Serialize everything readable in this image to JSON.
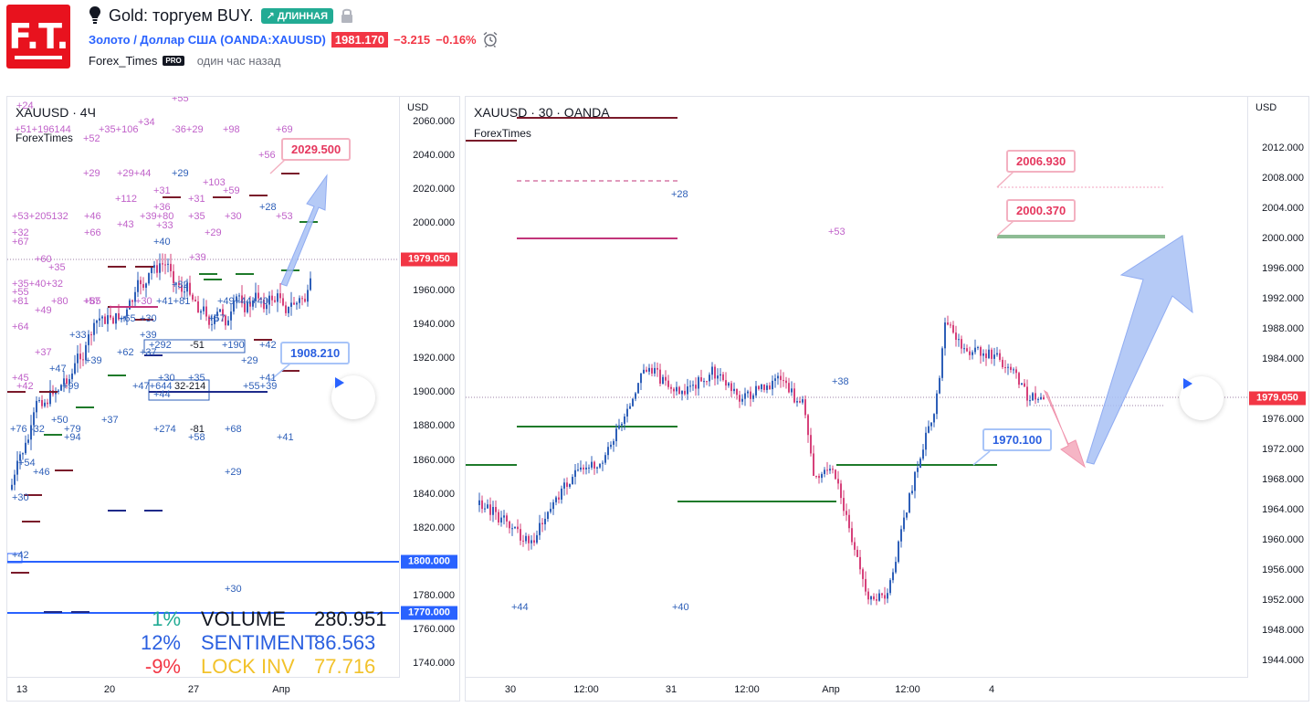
{
  "header": {
    "logo_text": "F.T.",
    "title": "Gold: торгуем BUY.",
    "direction_badge": "ДЛИННАЯ",
    "symbol_name": "Золото / Доллар США",
    "symbol_exchange": "(OANDA:XAUUSD)",
    "price": "1981.170",
    "change": "−3.215",
    "change_pct": "−0.16%",
    "author": "Forex_Times",
    "pro_badge": "PRO",
    "time_ago": "один час назад",
    "colors": {
      "logo": "#e8121e",
      "badge": "#22ab94",
      "negative": "#f23645",
      "link": "#2962ff"
    }
  },
  "left_chart": {
    "title": "XAUUSD · 4Ч",
    "subtitle": "ForexTimes",
    "axis_unit": "USD",
    "y_ticks": [
      "2060.000",
      "2040.000",
      "2020.000",
      "2000.000",
      "1960.000",
      "1940.000",
      "1920.000",
      "1900.000",
      "1880.000",
      "1860.000",
      "1840.000",
      "1820.000",
      "1780.000",
      "1760.000",
      "1740.000"
    ],
    "price_badges": [
      {
        "label": "1979.050",
        "color": "#f23645"
      },
      {
        "label": "1800.000",
        "color": "#2962ff"
      },
      {
        "label": "1770.000",
        "color": "#2962ff"
      }
    ],
    "x_ticks": [
      "13",
      "20",
      "27",
      "Апр"
    ],
    "callouts": {
      "target": "2029.500",
      "support": "1908.210"
    },
    "stats": [
      {
        "pct": "1%",
        "name": "VOLUME",
        "value": "280.951",
        "color": "#22ab94",
        "name_color": "#131722"
      },
      {
        "pct": "12%",
        "name": "SENTIMENT",
        "value": "86.563",
        "color": "#2a5fe0",
        "name_color": "#2a5fe0"
      },
      {
        "pct": "-9%",
        "name": "LOCK INV",
        "value": "77.716",
        "color": "#f23645",
        "name_color": "#f2c22b"
      }
    ],
    "annotations": [
      "+24",
      "+55",
      "+51+196144",
      "+35+106",
      "+34",
      "+52",
      "-36+29",
      "+98",
      "+69",
      "+56",
      "+29",
      "+29+44",
      "+29",
      "+103",
      "+31",
      "+59",
      "+112",
      "+31",
      "+53+205132",
      "+46",
      "+43",
      "+39+80",
      "+36",
      "+33",
      "+35",
      "+30",
      "+28",
      "+53",
      "+66",
      "+29",
      "+32",
      "+67",
      "+40",
      "+39",
      "+60",
      "+35",
      "+81",
      "+35+40+32",
      "+55",
      "+57",
      "+80",
      "+85",
      "+30",
      "+41+81",
      "+32",
      "+49+44+40",
      "+49",
      "+65",
      "+30",
      "+57",
      "+64",
      "+33",
      "+39",
      "+39",
      "+62",
      "+292",
      "-51",
      "+190",
      "+42",
      "+37",
      "+37",
      "+47",
      "+99",
      "+29",
      "+30",
      "+35",
      "+45",
      "+42",
      "+47+644",
      "32-214",
      "+44",
      "+41",
      "+55+39",
      "+50",
      "+37",
      "+76",
      "-32",
      "+79",
      "+94",
      "+274",
      "-81",
      "+58",
      "+68",
      "+41",
      "+54",
      "+46",
      "+29",
      "+30",
      "+42",
      "+30"
    ]
  },
  "right_chart": {
    "title": "XAUUSD · 30 · OANDA",
    "subtitle": "ForexTimes",
    "axis_unit": "USD",
    "y_ticks": [
      "2012.000",
      "2008.000",
      "2004.000",
      "2000.000",
      "1996.000",
      "1992.000",
      "1988.000",
      "1984.000",
      "1976.000",
      "1972.000",
      "1968.000",
      "1964.000",
      "1960.000",
      "1956.000",
      "1952.000",
      "1948.000",
      "1944.000"
    ],
    "price_badges": [
      {
        "label": "1979.050",
        "color": "#f23645"
      }
    ],
    "x_ticks": [
      "30",
      "12:00",
      "31",
      "12:00",
      "Апр",
      "12:00",
      "4"
    ],
    "callouts": {
      "target1": "2006.930",
      "target2": "2000.370",
      "support": "1970.100"
    },
    "annotations": [
      "+28",
      "+53",
      "+38",
      "+44",
      "+40"
    ]
  }
}
